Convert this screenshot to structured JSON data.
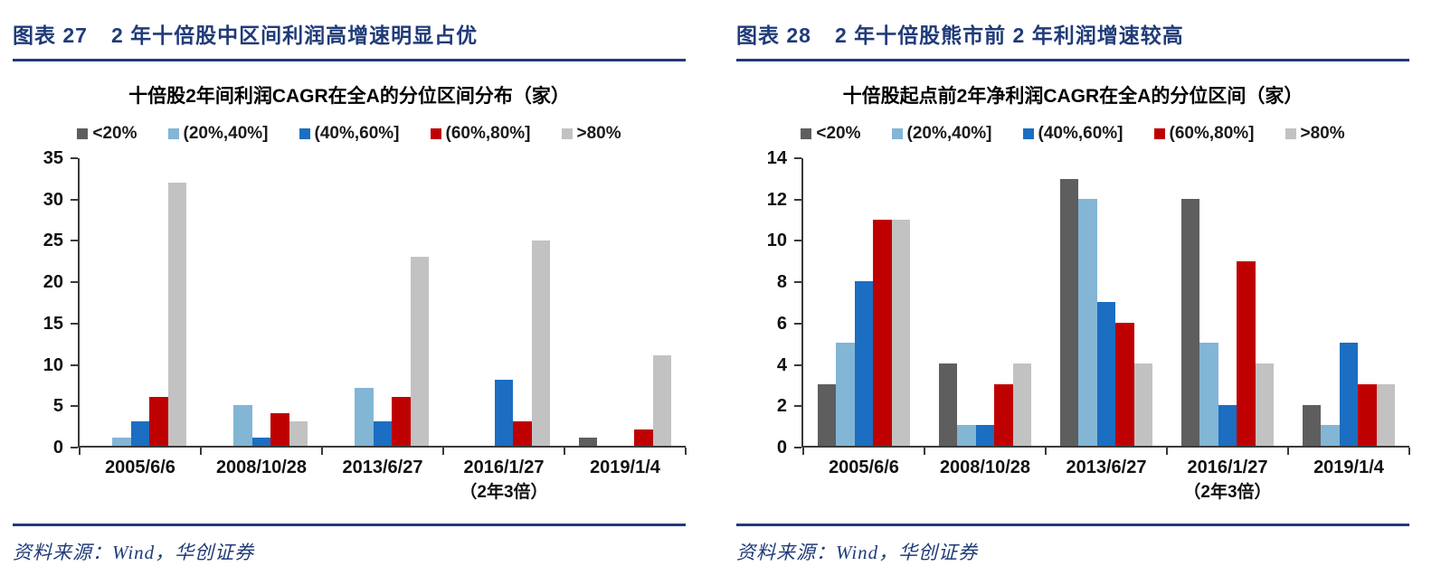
{
  "page": {
    "colors": {
      "navy": "#203b78",
      "axis": "#3a3a3a",
      "series_lt20": "#5e5e5e",
      "series_20_40": "#83b5d5",
      "series_40_60": "#1b6ec1",
      "series_60_80": "#bf0000",
      "series_gt80": "#c2c2c2"
    }
  },
  "chart_data": [
    {
      "type": "bar",
      "caption_label": "图表 27",
      "caption_title": "2 年十倍股中区间利润高增速明显占优",
      "title": "十倍股2年间利润CAGR在全A的分位区间分布（家）",
      "legend_position": "top",
      "grid": false,
      "categories": [
        "2005/6/6",
        "2008/10/28",
        "2013/6/27",
        "2016/1/27",
        "2019/1/4"
      ],
      "category_note": {
        "category_index": 3,
        "text": "（2年3倍）"
      },
      "series": [
        {
          "name": "<20%",
          "color": "#5e5e5e",
          "values": [
            0,
            0,
            0,
            0,
            1
          ]
        },
        {
          "name": "(20%,40%]",
          "color": "#83b5d5",
          "values": [
            1,
            5,
            7,
            0,
            0
          ]
        },
        {
          "name": "(40%,60%]",
          "color": "#1b6ec1",
          "values": [
            3,
            1,
            3,
            8,
            0
          ]
        },
        {
          "name": "(60%,80%]",
          "color": "#bf0000",
          "values": [
            6,
            4,
            6,
            3,
            2
          ]
        },
        {
          "name": ">80%",
          "color": "#c2c2c2",
          "values": [
            32,
            3,
            23,
            25,
            11
          ]
        }
      ],
      "xlabel": "",
      "ylabel": "",
      "ylim": [
        0,
        35
      ],
      "yticks": [
        0,
        5,
        10,
        15,
        20,
        25,
        30,
        35
      ],
      "source": "资料来源：Wind，华创证券"
    },
    {
      "type": "bar",
      "caption_label": "图表 28",
      "caption_title": "2 年十倍股熊市前 2 年利润增速较高",
      "title": "十倍股起点前2年净利润CAGR在全A的分位区间（家）",
      "legend_position": "top",
      "grid": false,
      "categories": [
        "2005/6/6",
        "2008/10/28",
        "2013/6/27",
        "2016/1/27",
        "2019/1/4"
      ],
      "category_note": {
        "category_index": 3,
        "text": "（2年3倍）"
      },
      "series": [
        {
          "name": "<20%",
          "color": "#5e5e5e",
          "values": [
            3,
            4,
            13,
            12,
            2
          ]
        },
        {
          "name": "(20%,40%]",
          "color": "#83b5d5",
          "values": [
            5,
            1,
            12,
            5,
            1
          ]
        },
        {
          "name": "(40%,60%]",
          "color": "#1b6ec1",
          "values": [
            8,
            1,
            7,
            2,
            5
          ]
        },
        {
          "name": "(60%,80%]",
          "color": "#bf0000",
          "values": [
            11,
            3,
            6,
            9,
            3
          ]
        },
        {
          "name": ">80%",
          "color": "#c2c2c2",
          "values": [
            11,
            4,
            4,
            4,
            3
          ]
        }
      ],
      "xlabel": "",
      "ylabel": "",
      "ylim": [
        0,
        14
      ],
      "yticks": [
        0,
        2,
        4,
        6,
        8,
        10,
        12,
        14
      ],
      "source": "资料来源：Wind，华创证券"
    }
  ]
}
